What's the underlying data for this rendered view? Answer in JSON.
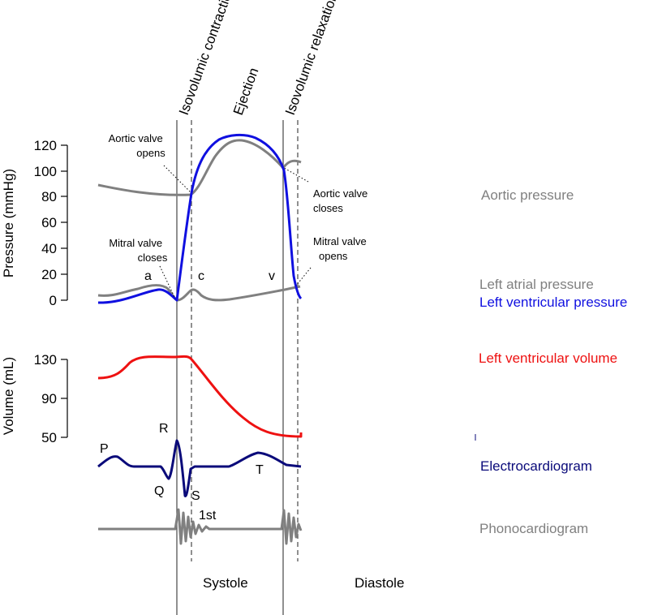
{
  "phases": {
    "isovolumic_contraction": "Isovolumic contraction",
    "ejection": "Ejection",
    "isovolumic_relaxation": "Isovolumic relaxation"
  },
  "pressure_axis": {
    "title": "Pressure (mmHg)",
    "ticks": [
      "120",
      "100",
      "80",
      "60",
      "40",
      "20",
      "0"
    ]
  },
  "volume_axis": {
    "title": "Volume (mL)",
    "ticks": [
      "130",
      "90",
      "50"
    ]
  },
  "annotations": {
    "aortic_valve_opens": [
      "Aortic valve",
      "opens"
    ],
    "aortic_valve_closes": [
      "Aortic valve",
      "closes"
    ],
    "mitral_valve_closes": [
      "Mitral valve",
      "closes"
    ],
    "mitral_valve_opens": [
      "Mitral valve",
      "opens"
    ]
  },
  "waves": {
    "a": "a",
    "c": "c",
    "v": "v",
    "P": "P",
    "Q": "Q",
    "R": "R",
    "S": "S",
    "T": "T",
    "first_sound": "1st"
  },
  "legend": {
    "aortic_pressure": "Aortic pressure",
    "left_atrial_pressure": "Left atrial pressure",
    "left_ventricular_pressure": "Left ventricular pressure",
    "left_ventricular_volume": "Left ventricular volume",
    "electrocardiogram": "Electrocardiogram",
    "phonocardiogram": "Phonocardiogram"
  },
  "periods": {
    "systole": "Systole",
    "diastole": "Diastole"
  },
  "colors": {
    "aortic": "#808080",
    "atrial": "#808080",
    "ventricular_pressure": "#1010e0",
    "volume": "#ee1111",
    "ecg": "#0a0a7a",
    "phono": "#808080"
  }
}
